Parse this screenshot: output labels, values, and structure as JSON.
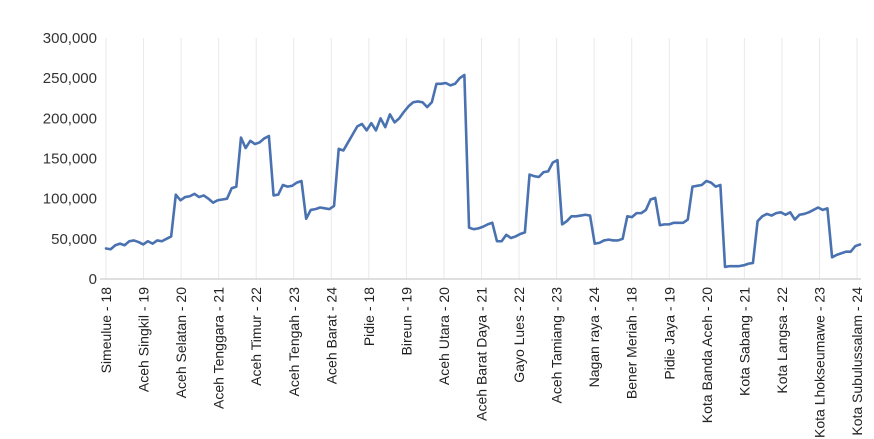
{
  "chart_data": {
    "type": "line",
    "title": "",
    "xlabel": "",
    "ylabel": "",
    "ylim": [
      0,
      300000
    ],
    "yticks": [
      "0",
      "50,000",
      "100,000",
      "150,000",
      "200,000",
      "250,000",
      "300,000"
    ],
    "ytick_values": [
      0,
      50000,
      100000,
      150000,
      200000,
      250000,
      300000
    ],
    "grid": "vertical",
    "legend": "none",
    "line_color": "#4a72b0",
    "x_labels": [
      "Simeulue - 18",
      "Aceh Singkil - 19",
      "Aceh Selatan - 20",
      "Aceh Tenggara - 21",
      "Aceh Timur - 22",
      "Aceh Tengah - 23",
      "Aceh Barat - 24",
      "Pidie - 18",
      "Bireun - 19",
      "Aceh Utara - 20",
      "Aceh Barat Daya - 21",
      "Gayo Lues - 22",
      "Aceh Tamiang - 23",
      "Nagan raya - 24",
      "Bener Meriah - 18",
      "Pidie Jaya - 19",
      "Kota Banda Aceh - 20",
      "Kota Sabang - 21",
      "Kota Langsa - 22",
      "Kota Lhokseumawe - 23",
      "Kota Subulussalam - 24"
    ],
    "series": [
      {
        "values": [
          38000,
          37000,
          42000,
          44000,
          42000,
          47000,
          48000,
          46000,
          43000,
          47000,
          44000,
          48000,
          47000,
          50000,
          53000,
          105000,
          98000,
          102000,
          103000,
          106000,
          102000,
          104000,
          100000,
          95000,
          98000,
          99000,
          100000,
          113000,
          115000,
          176000,
          163000,
          172000,
          168000,
          170000,
          175000,
          178000,
          104000,
          105000,
          117000,
          115000,
          116000,
          120000,
          122000,
          75000,
          86000,
          87000,
          89000,
          88000,
          87000,
          91000,
          162000,
          160000,
          170000,
          180000,
          190000,
          193000,
          185000,
          194000,
          185000,
          200000,
          189000,
          205000,
          195000,
          200000,
          208000,
          215000,
          220000,
          221000,
          220000,
          214000,
          220000,
          243000,
          243000,
          244000,
          241000,
          243000,
          250000,
          254000,
          64000,
          62000,
          63000,
          65000,
          68000,
          70000,
          47000,
          47000,
          55000,
          51000,
          53000,
          56000,
          58000,
          130000,
          128000,
          127000,
          133000,
          134000,
          145000,
          148000,
          68000,
          72000,
          78000,
          78000,
          79000,
          80000,
          79000,
          44000,
          45000,
          48000,
          49000,
          48000,
          48000,
          50000,
          78000,
          77000,
          82000,
          82000,
          86000,
          99000,
          101000,
          67000,
          68000,
          68000,
          70000,
          70000,
          70000,
          74000,
          115000,
          116000,
          117000,
          122000,
          120000,
          115000,
          117000,
          15000,
          16000,
          16000,
          16000,
          17000,
          19000,
          20000,
          72000,
          78000,
          81000,
          79000,
          82000,
          83000,
          80000,
          83000,
          74000,
          80000,
          81000,
          83000,
          86000,
          89000,
          86000,
          88000,
          27000,
          30000,
          32000,
          34000,
          34000,
          41000,
          43000
        ]
      }
    ]
  }
}
